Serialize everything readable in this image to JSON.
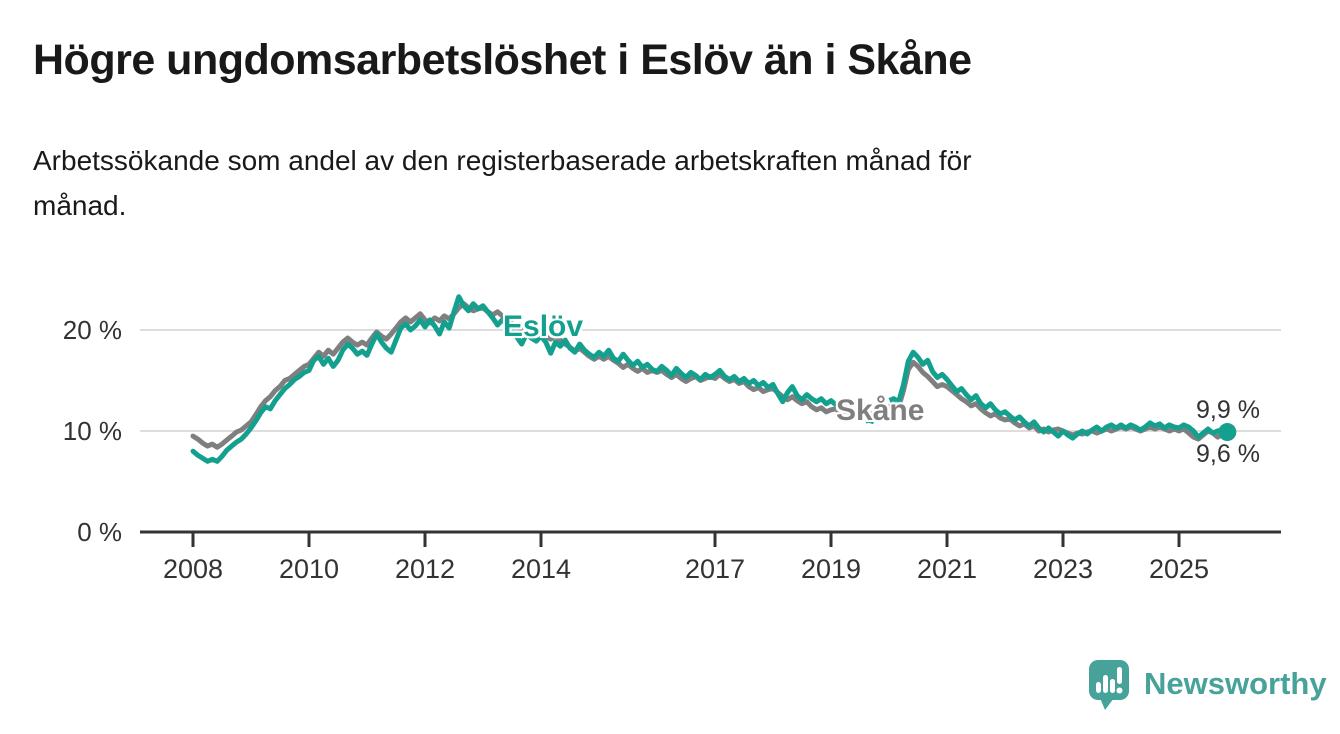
{
  "header": {
    "title": "Högre ungdomsarbetslöshet i Eslöv än i Skåne",
    "subtitle": "Arbetssökande som andel av den registerbaserade arbetskraften månad för månad.",
    "subtitle_lines": [
      "Arbetssökande som andel av den registerbaserade arbetskraften månad för",
      "månad."
    ]
  },
  "branding": {
    "logo_text": "Newsworthy",
    "logo_color": "#47a399"
  },
  "colors": {
    "background": "#ffffff",
    "grid": "#dddddd",
    "axis": "#333333",
    "tick_label": "#333333",
    "title_text": "#191919",
    "value_label_text": "#333333"
  },
  "chart_data": {
    "type": "line",
    "title": "Högre ungdomsarbetslöshet i Eslöv än i Skåne",
    "subtitle": "Arbetssökande som andel av den registerbaserade arbetskraften månad för månad.",
    "unit": "%",
    "x_start_year": 2008,
    "x_start_month": 1,
    "x_end_year": 2025,
    "x_end_month": 11,
    "x_ticks": [
      2008,
      2010,
      2012,
      2014,
      2017,
      2019,
      2021,
      2023,
      2025
    ],
    "y_ticks": [
      {
        "value": 0,
        "label": "0 %"
      },
      {
        "value": 10,
        "label": "10 %"
      },
      {
        "value": 20,
        "label": "20 %"
      }
    ],
    "ylim": [
      0,
      24
    ],
    "grid": true,
    "legend_position": "inline-labels",
    "series": [
      {
        "name": "Eslöv",
        "color": "#14a08e",
        "end_label": "9,9 %",
        "end_value": 9.9,
        "end_dot": true,
        "dashed_window": {
          "from_index": 135,
          "to_index": 146,
          "note": "dashed segment Apr 2019 - Mar 2020"
        },
        "values": [
          8.0,
          7.6,
          7.3,
          7.0,
          7.2,
          7.0,
          7.5,
          8.1,
          8.5,
          8.9,
          9.2,
          9.7,
          10.3,
          11.0,
          11.8,
          12.4,
          12.2,
          13.0,
          13.6,
          14.2,
          14.6,
          15.1,
          15.4,
          15.8,
          16.0,
          17.0,
          17.4,
          16.6,
          17.2,
          16.4,
          17.0,
          18.0,
          18.6,
          18.2,
          17.6,
          17.9,
          17.5,
          18.6,
          19.6,
          18.8,
          18.2,
          17.8,
          19.0,
          20.2,
          20.6,
          20.0,
          20.4,
          21.0,
          20.3,
          21.0,
          20.4,
          19.6,
          20.8,
          20.2,
          21.8,
          23.3,
          22.4,
          21.9,
          22.6,
          22.1,
          22.4,
          21.8,
          21.2,
          20.5,
          21.0,
          20.6,
          20.0,
          19.3,
          18.6,
          19.6,
          19.2,
          18.9,
          19.4,
          18.8,
          17.7,
          18.8,
          18.4,
          19.0,
          18.2,
          17.8,
          18.6,
          18.0,
          17.6,
          17.3,
          17.8,
          17.4,
          18.0,
          17.2,
          16.9,
          17.6,
          17.0,
          16.5,
          16.9,
          16.3,
          16.6,
          16.1,
          15.9,
          16.4,
          16.0,
          15.5,
          16.2,
          15.7,
          15.3,
          15.8,
          15.5,
          15.1,
          15.6,
          15.3,
          15.6,
          16.0,
          15.4,
          15.1,
          15.4,
          14.9,
          15.2,
          14.7,
          15.0,
          14.5,
          14.8,
          14.3,
          14.6,
          13.7,
          12.9,
          13.8,
          14.4,
          13.5,
          13.1,
          13.6,
          13.2,
          12.9,
          13.2,
          12.7,
          13.0,
          12.6,
          12.3,
          12.7,
          12.4,
          12.6,
          12.9,
          12.3,
          10.4,
          11.9,
          12.6,
          12.9,
          13.0,
          13.2,
          12.9,
          14.6,
          16.9,
          17.8,
          17.3,
          16.6,
          17.0,
          15.9,
          15.3,
          15.6,
          15.1,
          14.5,
          13.9,
          14.2,
          13.6,
          13.1,
          13.5,
          12.7,
          12.3,
          12.7,
          12.1,
          11.7,
          11.9,
          11.5,
          11.1,
          11.4,
          10.9,
          10.5,
          10.9,
          10.3,
          9.9,
          10.3,
          9.9,
          9.5,
          10.0,
          9.6,
          9.3,
          9.7,
          10.0,
          9.7,
          10.1,
          10.4,
          10.0,
          10.4,
          10.6,
          10.3,
          10.6,
          10.3,
          10.6,
          10.4,
          10.1,
          10.4,
          10.8,
          10.5,
          10.7,
          10.3,
          10.6,
          10.4,
          10.3,
          10.6,
          10.4,
          10.0,
          9.4,
          9.8,
          10.2,
          9.8,
          10.0,
          10.1,
          9.9
        ]
      },
      {
        "name": "Skåne",
        "color": "#7f7f7f",
        "end_label": "9,6 %",
        "end_value": 9.6,
        "end_dot": false,
        "values": [
          9.5,
          9.2,
          8.8,
          8.5,
          8.7,
          8.4,
          8.7,
          9.1,
          9.5,
          9.9,
          10.1,
          10.5,
          10.9,
          11.6,
          12.4,
          13.0,
          13.4,
          14.0,
          14.4,
          15.0,
          15.2,
          15.6,
          16.0,
          16.4,
          16.6,
          17.2,
          17.8,
          17.4,
          18.0,
          17.6,
          18.2,
          18.8,
          19.2,
          18.8,
          18.5,
          18.8,
          18.5,
          19.2,
          19.8,
          19.4,
          19.1,
          19.6,
          20.2,
          20.8,
          21.2,
          20.8,
          21.2,
          21.6,
          21.0,
          20.7,
          21.2,
          20.9,
          21.4,
          21.1,
          21.6,
          22.2,
          22.6,
          22.2,
          21.9,
          22.1,
          22.2,
          21.8,
          21.5,
          21.8,
          21.4,
          21.0,
          20.6,
          20.2,
          19.9,
          20.2,
          19.8,
          19.5,
          19.8,
          19.4,
          19.1,
          19.4,
          19.0,
          18.6,
          18.3,
          17.9,
          18.2,
          17.8,
          17.4,
          17.1,
          17.4,
          17.1,
          17.4,
          17.0,
          16.7,
          16.3,
          16.6,
          16.2,
          15.9,
          16.2,
          15.8,
          16.0,
          15.8,
          16.0,
          15.6,
          15.3,
          15.6,
          15.2,
          14.9,
          15.2,
          15.4,
          15.0,
          15.2,
          15.4,
          15.2,
          15.6,
          15.2,
          14.9,
          15.1,
          14.7,
          14.9,
          14.4,
          14.1,
          14.3,
          13.9,
          14.1,
          14.2,
          13.8,
          13.4,
          13.1,
          13.4,
          13.0,
          12.7,
          12.9,
          12.4,
          12.1,
          12.3,
          11.9,
          12.1,
          12.2,
          11.8,
          12.0,
          11.7,
          11.9,
          12.0,
          11.8,
          11.6,
          11.8,
          12.0,
          12.2,
          12.4,
          12.6,
          12.4,
          14.0,
          16.1,
          16.8,
          16.4,
          15.8,
          15.4,
          14.9,
          14.4,
          14.6,
          14.4,
          14.0,
          13.6,
          13.2,
          12.9,
          12.5,
          12.7,
          12.2,
          11.8,
          11.5,
          11.7,
          11.3,
          11.1,
          11.2,
          10.8,
          10.5,
          10.7,
          10.3,
          10.5,
          10.0,
          10.2,
          9.9,
          10.1,
          10.2,
          10.0,
          9.8,
          9.6,
          9.8,
          9.7,
          9.9,
          10.0,
          9.8,
          10.0,
          10.2,
          10.0,
          10.2,
          10.4,
          10.2,
          10.4,
          10.2,
          10.0,
          10.2,
          10.4,
          10.2,
          10.4,
          10.2,
          10.0,
          10.2,
          10.0,
          10.2,
          9.8,
          9.4,
          9.2,
          9.6,
          10.0,
          9.8,
          9.4,
          9.7,
          9.6
        ]
      }
    ]
  }
}
